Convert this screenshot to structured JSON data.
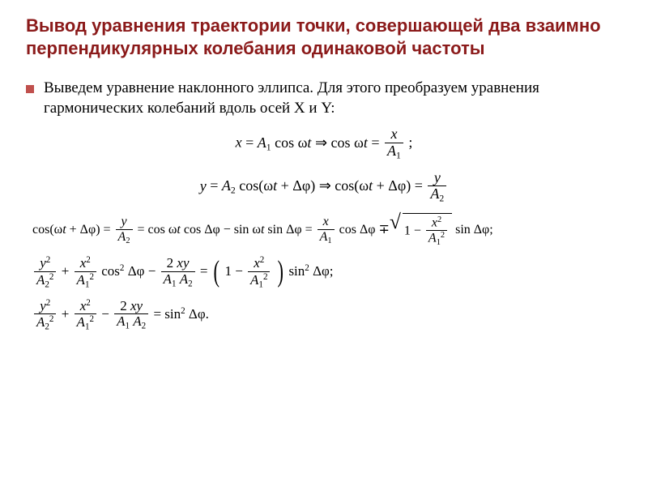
{
  "title": "Вывод уравнения траектории точки, совершающей два взаимно перпендикулярных колебания одинаковой частоты",
  "body": "Выведем уравнение наклонного эллипса. Для этого преобразуем уравнения гармонических колебаний вдоль осей X и Y:",
  "colors": {
    "title": "#8b1a1a",
    "bullet": "#c0504d",
    "text": "#000000",
    "background": "#ffffff"
  },
  "fontsizes": {
    "title": 22,
    "body": 19,
    "equations": 18
  },
  "symbols": {
    "x": "x",
    "y": "y",
    "A1": "A₁",
    "A2": "A₂",
    "omega": "ω",
    "t": "t",
    "dphi": "Δφ",
    "cos": "cos",
    "sin": "sin",
    "implies": "⇒",
    "eq": "=",
    "plus": "+",
    "minus": "−",
    "semicolon": ";",
    "period": ".",
    "one": "1",
    "two": "2",
    "mp": "∓",
    "lparen": "(",
    "rparen": ")"
  },
  "equations": {
    "eq1_lhs": "x = A₁ cos ωt",
    "eq1_rhs_a": "cos ωt =",
    "eq2_lhs": "y = A₂ cos(ωt + Δφ)",
    "eq2_rhs_a": "cos(ωt + Δφ) =",
    "eq3_part1": "cos(ωt + Δφ) =",
    "eq3_part2": "= cos ωt cos Δφ − sin ωt sin Δφ =",
    "eq3_part3_mid": "cos Δφ ∓",
    "eq3_part3_end": "sin Δφ;",
    "eq4_cos2": "cos² Δφ −",
    "eq4_sin2": "sin² Δφ;",
    "eq5_rhs": "= sin² Δφ.",
    "frac_2xy_num": "2 xy",
    "frac_2xy_den": "A₁ A₂"
  }
}
